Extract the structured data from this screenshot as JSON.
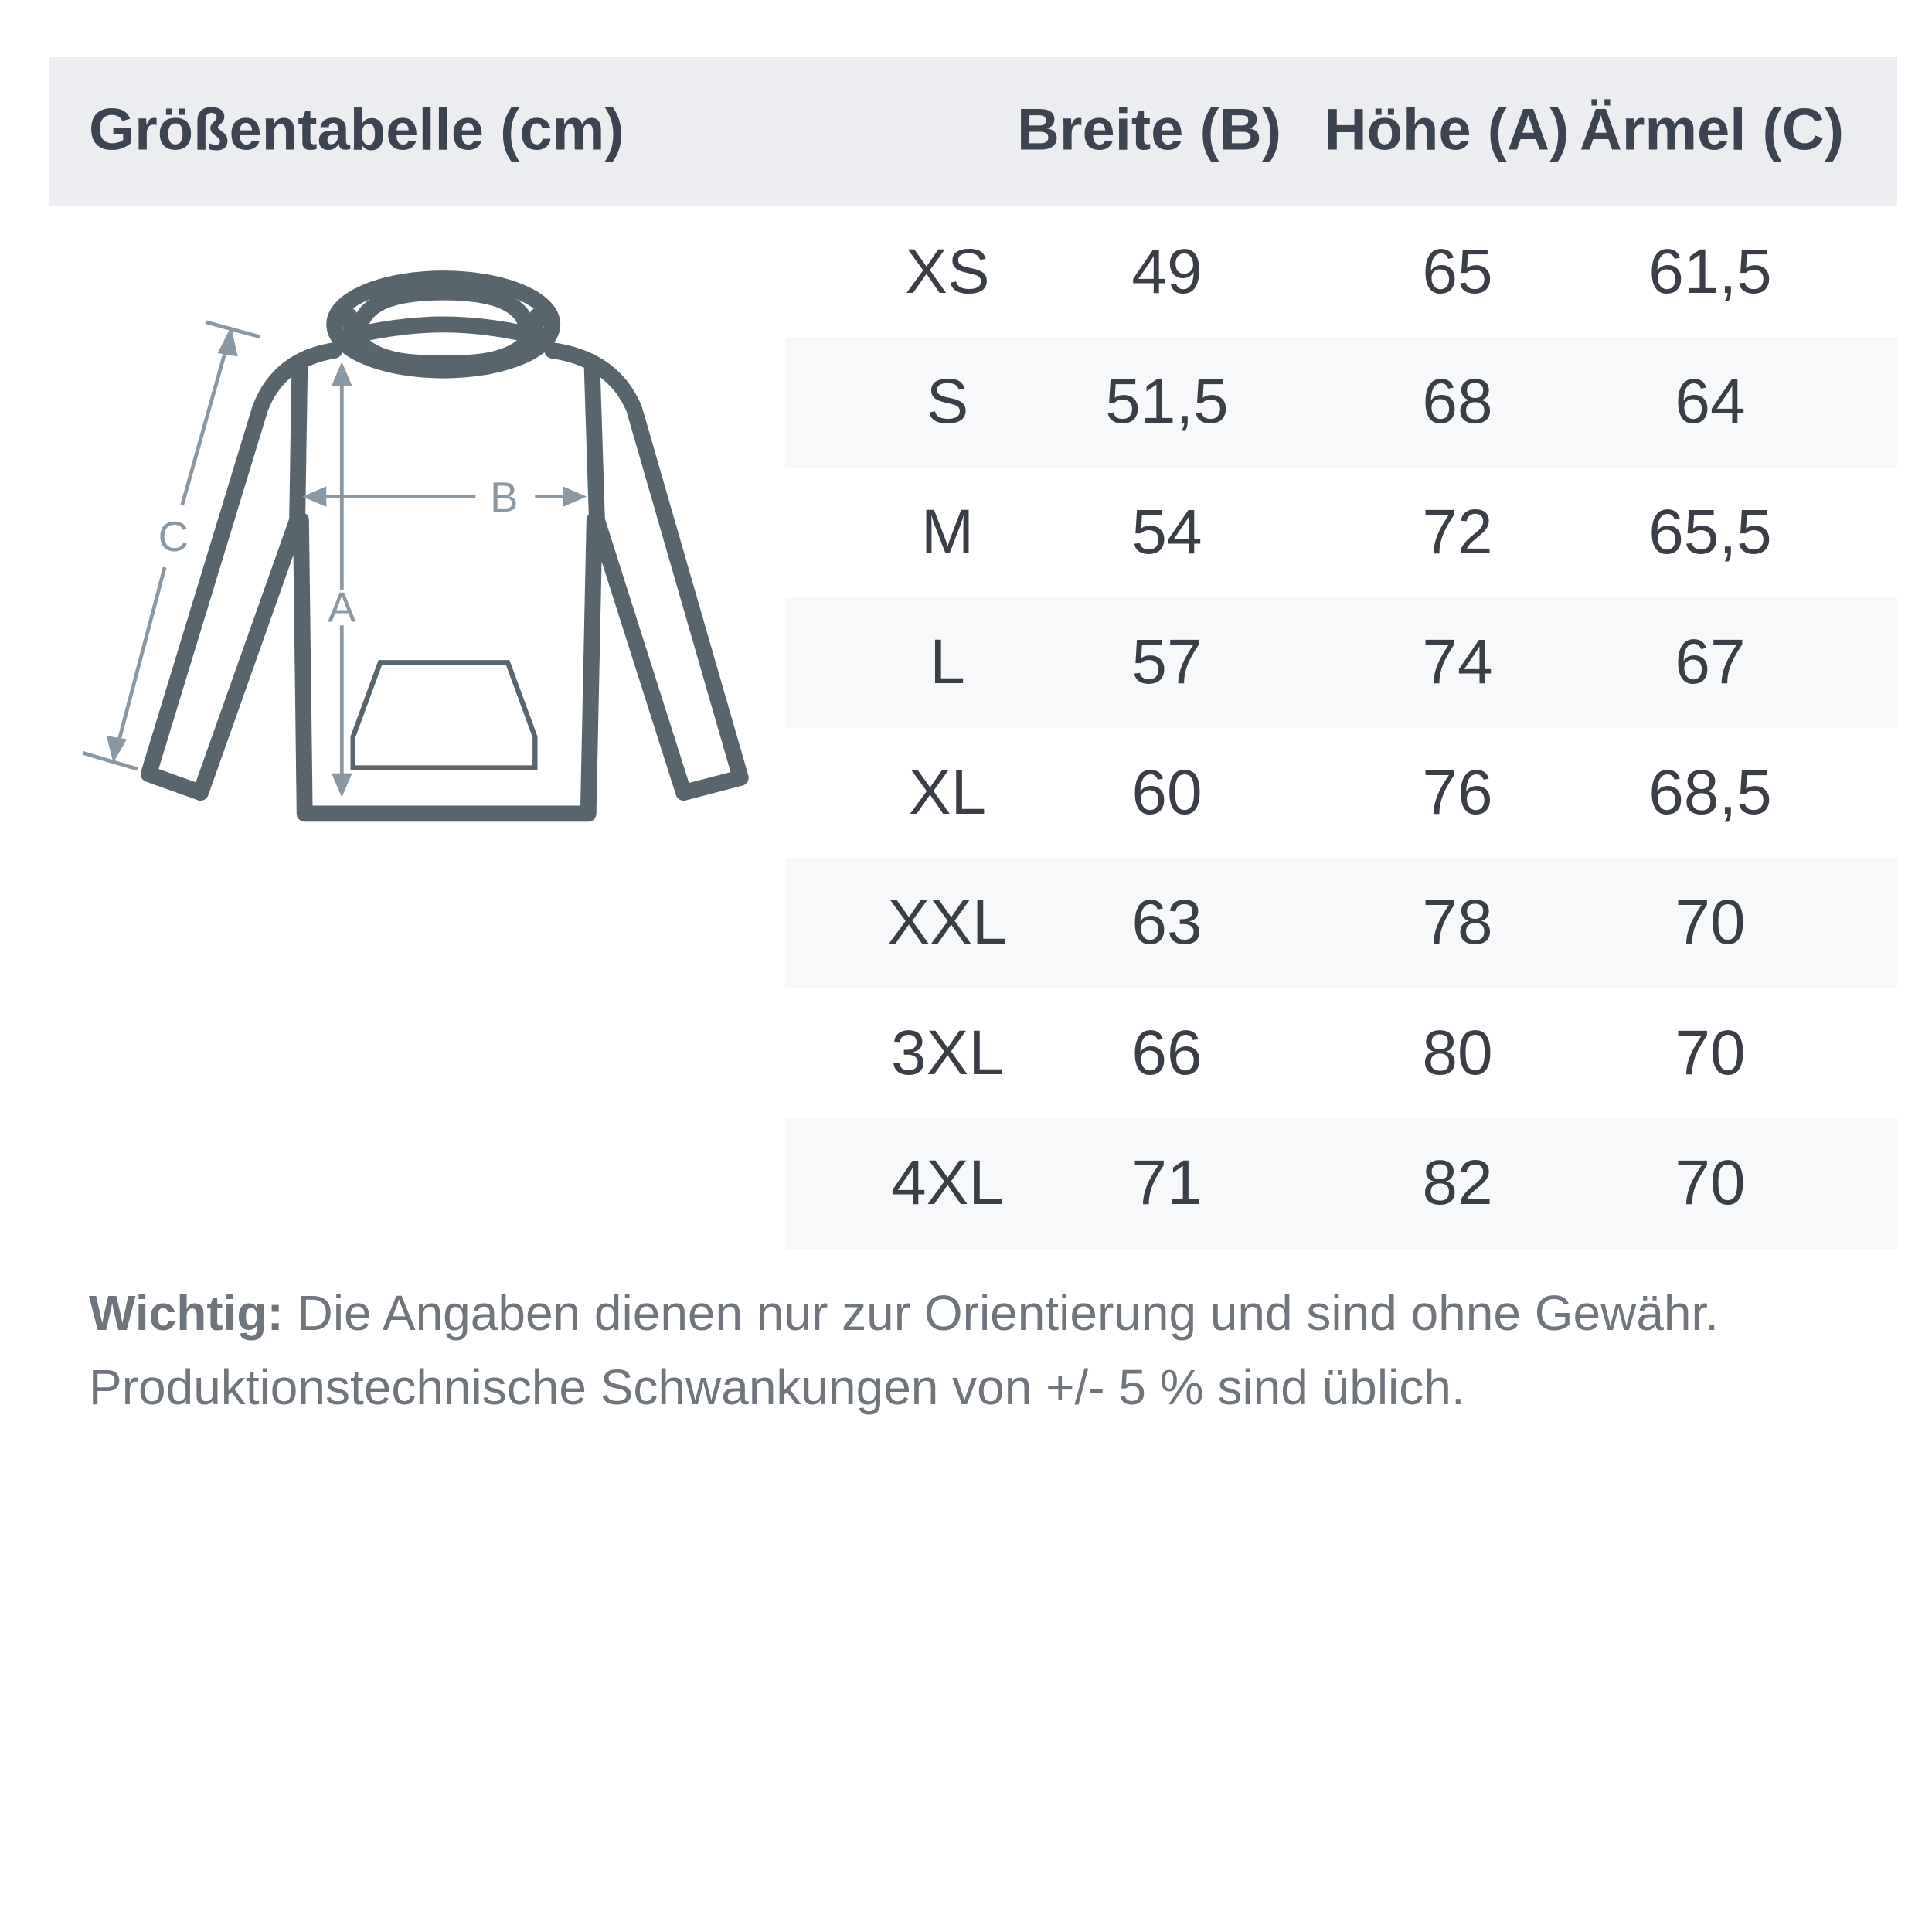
{
  "header": {
    "title": "Größentabelle (cm)",
    "columns": [
      "Breite (B)",
      "Höhe (A)",
      "Ärmel (C)"
    ]
  },
  "diagram": {
    "labels": {
      "width": "B",
      "height": "A",
      "sleeve": "C"
    }
  },
  "table": {
    "rows": [
      {
        "size": "XS",
        "breite": "49",
        "hoehe": "65",
        "aermel": "61,5"
      },
      {
        "size": "S",
        "breite": "51,5",
        "hoehe": "68",
        "aermel": "64"
      },
      {
        "size": "M",
        "breite": "54",
        "hoehe": "72",
        "aermel": "65,5"
      },
      {
        "size": "L",
        "breite": "57",
        "hoehe": "74",
        "aermel": "67"
      },
      {
        "size": "XL",
        "breite": "60",
        "hoehe": "76",
        "aermel": "68,5"
      },
      {
        "size": "XXL",
        "breite": "63",
        "hoehe": "78",
        "aermel": "70"
      },
      {
        "size": "3XL",
        "breite": "66",
        "hoehe": "80",
        "aermel": "70"
      },
      {
        "size": "4XL",
        "breite": "71",
        "hoehe": "82",
        "aermel": "70"
      }
    ]
  },
  "note": {
    "label": "Wichtig:",
    "line1": " Die Angaben dienen nur zur Orientierung und sind ohne Gewähr.",
    "line2": "Produktionstechnische Schwankungen von +/- 5 % sind üblich."
  },
  "colors": {
    "header_bg": "#ebedf0",
    "stripe": "#f7f8fa",
    "outline": "#59656d",
    "measure": "#8a98a3"
  }
}
